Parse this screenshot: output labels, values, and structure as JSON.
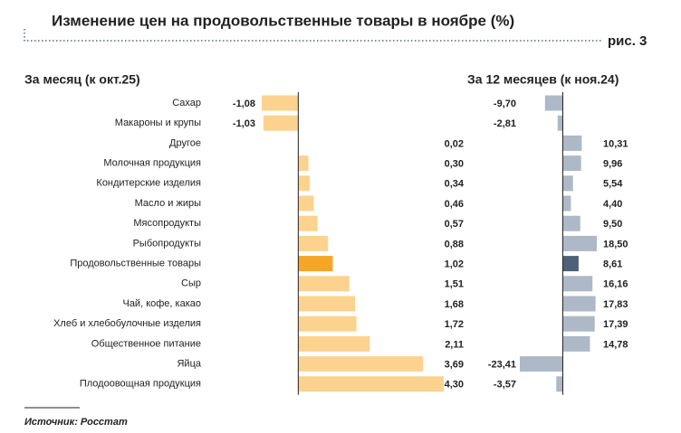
{
  "chart_data": {
    "type": "bar",
    "orientation": "horizontal",
    "title": "Изменение цен на продовольственные товары в ноябре (%)",
    "figure_label": "рис. 3",
    "source": "Источник: Росстат",
    "categories": [
      "Сахар",
      "Макароны и крупы",
      "Другое",
      "Молочная продукция",
      "Кондитерские изделия",
      "Масло и жиры",
      "Мясопродукты",
      "Рыбопродукты",
      "Продовольственные товары",
      "Сыр",
      "Чай, кофе, какао",
      "Хлеб и хлебобулочные изделия",
      "Общественное питание",
      "Яйца",
      "Плодоовощная продукция"
    ],
    "series": [
      {
        "name": "За месяц (к окт.25)",
        "values": [
          -1.08,
          -1.03,
          0.02,
          0.3,
          0.34,
          0.46,
          0.57,
          0.88,
          1.02,
          1.51,
          1.68,
          1.72,
          2.11,
          3.69,
          4.3
        ],
        "value_labels": [
          "-1,08",
          "-1,03",
          "0,02",
          "0,30",
          "0,34",
          "0,46",
          "0,57",
          "0,88",
          "1,02",
          "1,51",
          "1,68",
          "1,72",
          "2,11",
          "3,69",
          "4,30"
        ],
        "colors": [
          "#fbd38f",
          "#fbd38f",
          "#fbd38f",
          "#fbd38f",
          "#fbd38f",
          "#fbd38f",
          "#fbd38f",
          "#fbd38f",
          "#f5a623",
          "#fbd38f",
          "#fbd38f",
          "#fbd38f",
          "#fbd38f",
          "#fbd38f",
          "#fbd38f"
        ]
      },
      {
        "name": "За 12 месяцев (к ноя.24)",
        "values": [
          -9.7,
          -2.81,
          10.31,
          9.96,
          5.54,
          4.4,
          9.5,
          18.5,
          8.61,
          16.16,
          17.83,
          17.39,
          14.78,
          -23.41,
          -3.57
        ],
        "value_labels": [
          "-9,70",
          "-2,81",
          "10,31",
          "9,96",
          "5,54",
          "4,40",
          "9,50",
          "18,50",
          "8,61",
          "16,16",
          "17,83",
          "17,39",
          "14,78",
          "-23,41",
          "-3,57"
        ],
        "colors": [
          "#adb9c6",
          "#adb9c6",
          "#adb9c6",
          "#adb9c6",
          "#adb9c6",
          "#adb9c6",
          "#adb9c6",
          "#adb9c6",
          "#4d6178",
          "#adb9c6",
          "#adb9c6",
          "#adb9c6",
          "#adb9c6",
          "#adb9c6",
          "#adb9c6"
        ]
      }
    ]
  }
}
